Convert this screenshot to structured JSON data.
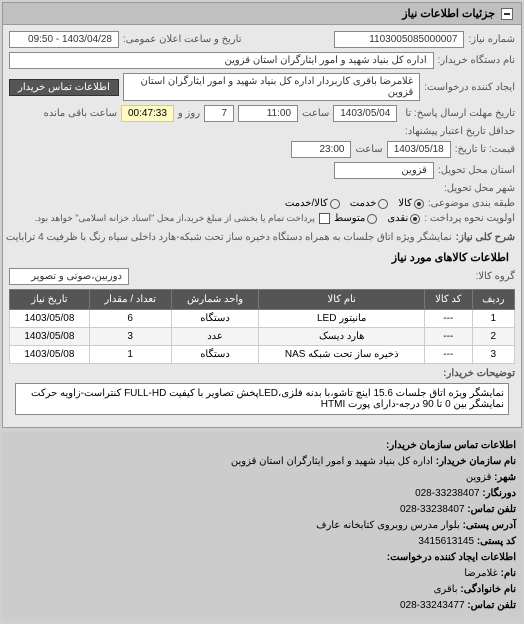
{
  "header": {
    "title": "جزئیات اطلاعات نیاز"
  },
  "fields": {
    "req_no_label": "شماره نیاز:",
    "req_no": "1103005085000007",
    "public_date_label": "تاریخ و ساعت اعلان عمومی:",
    "public_date": "1403/04/28 - 09:50",
    "buyer_org_label": "نام دستگاه خریدار:",
    "buyer_org": "اداره کل بنیاد شهید و امور ایثارگران استان قزوین",
    "requester_label": "ایجاد کننده درخواست:",
    "requester": "غلامرضا باقری کاربردار اداره کل بنیاد شهید و امور ایثارگران استان قزوین",
    "contact_btn": "اطلاعات تماس خریدار",
    "deadline_send_label": "تاریخ مهلت ارسال پاسخ: تا",
    "deadline_send_date": "1403/05/04",
    "deadline_send_time_label": "ساعت",
    "deadline_send_time": "11:00",
    "days_label": "روز و",
    "days": "7",
    "countdown_label": "ساعت باقی مانده",
    "countdown": "00:47:33",
    "validity_label": "حداقل تاریخ اعتبار پیشنهاد:",
    "validity_to_label": "قیمت: تا تاریخ:",
    "validity_date": "1403/05/18",
    "validity_time_label": "ساعت",
    "validity_time": "23:00",
    "delivery_province_label": "استان محل تحویل:",
    "delivery_province": "قزوین",
    "delivery_city_label": "شهر محل تحویل:",
    "category_label": "طبقه بندی موضوعی:",
    "check_label1": "کالا",
    "check_label2": "خدمت",
    "check_label3": "کالا/خدمت",
    "pay_priority_label": "اولویت نحوه پرداخت :",
    "pay_opt1": "نقدی",
    "pay_opt2": "متوسط",
    "pay_note": "پرداخت تمام یا بخشی از مبلغ خرید،از محل \"اسناد خزانه اسلامی\" خواهد بود.",
    "main_title_label": "شرح کلی نیاز:",
    "main_title": "نمایشگر ویژه اتاق جلسات به همراه دستگاه دخیره ساز تحت شبکه-هارد داخلی سیاه رنگ با ظرفیت 4 ترابایت",
    "goods_section": "اطلاعات کالاهای مورد نیاز",
    "goods_group_label": "گروه کالا:",
    "goods_group": "دوربین،صوتی و تصویر",
    "buyer_note_label": "توضیحات خریدار:",
    "buyer_note": "نمایشگر ویژه اتاق جلسات 15.6 اینچ تاشو،با بدنه فلزی،LEDپخش تصاویر با کیفیت FULL-HD کنتراست-زاویه حرکت نمایشگر بین 0 تا 90 درجه-دارای پورت HTMI"
  },
  "table": {
    "headers": [
      "ردیف",
      "کد کالا",
      "نام کالا",
      "واحد شمارش",
      "تعداد / مقدار",
      "تاریخ نیاز"
    ],
    "rows": [
      [
        "1",
        "---",
        "مانیتور LED",
        "دستگاه",
        "6",
        "1403/05/08"
      ],
      [
        "2",
        "---",
        "هارد دیسک",
        "عدد",
        "3",
        "1403/05/08"
      ],
      [
        "3",
        "---",
        "ذخیره ساز تحت شبکه NAS",
        "دستگاه",
        "1",
        "1403/05/08"
      ]
    ]
  },
  "contact": {
    "title": "اطلاعات تماس سازمان خریدار:",
    "org_label": "نام سازمان خریدار:",
    "org": "اداره کل بنیاد شهید و امور ایثارگران استان قزوین",
    "city_label": "شهر:",
    "city": "قزوین",
    "fax_label": "دورنگار:",
    "fax": "33238407-028",
    "phone_label": "تلفن تماس:",
    "phone": "33238407-028",
    "address_label": "آدرس پستی:",
    "address": "بلوار مدرس روبروی کتابخانه عارف",
    "postal_label": "کد پستی:",
    "postal": "3415613145",
    "creator_title": "اطلاعات ایجاد کننده درخواست:",
    "name_label": "نام:",
    "name": "غلامرضا",
    "family_label": "نام خانوادگی:",
    "family": "باقری",
    "tel_label": "تلفن تماس:",
    "tel": "33243477-028"
  }
}
